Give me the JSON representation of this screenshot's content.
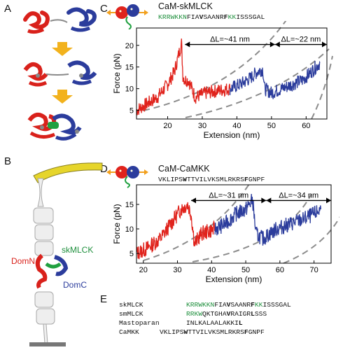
{
  "panels": {
    "A": {
      "label": "A"
    },
    "B": {
      "label": "B",
      "annotations": {
        "domn": "DomN",
        "skmlck": "skMLCK",
        "domc": "DomC"
      }
    },
    "C": {
      "label": "C",
      "title": "CaM-skMLCK",
      "sequence": [
        {
          "t": "KRRWKKN",
          "c": "g"
        },
        {
          "t": "FIA",
          "c": "n"
        },
        {
          "t": "V",
          "c": "b"
        },
        {
          "t": "SAANR",
          "c": "n"
        },
        {
          "t": "F",
          "c": "b"
        },
        {
          "t": "KK",
          "c": "g"
        },
        {
          "t": "ISSSGAL",
          "c": "n"
        }
      ],
      "arrow1": "ΔL=~41 nm",
      "arrow2": "ΔL=~22 nm"
    },
    "D": {
      "label": "D",
      "title": "CaM-CaMKK",
      "sequence": [
        {
          "t": "VKLIPS",
          "c": "n"
        },
        {
          "t": "W",
          "c": "b"
        },
        {
          "t": "TTVILVKSMLRKRS",
          "c": "n"
        },
        {
          "t": "F",
          "c": "b"
        },
        {
          "t": "GNPF",
          "c": "n"
        }
      ],
      "arrow1": "ΔL=~31 nm",
      "arrow2": "ΔL=~34 nm"
    },
    "E": {
      "label": "E",
      "rows": [
        {
          "name": "skMLCK",
          "segments": [
            {
              "t": "KRRWKKN",
              "c": "g"
            },
            {
              "t": "FIA",
              "c": "n"
            },
            {
              "t": "V",
              "c": "b"
            },
            {
              "t": "SAANR",
              "c": "n"
            },
            {
              "t": "F",
              "c": "b"
            },
            {
              "t": "KK",
              "c": "g"
            },
            {
              "t": "ISSSGAL",
              "c": "n"
            }
          ]
        },
        {
          "name": "smMLCK",
          "segments": [
            {
              "t": "RRKW",
              "c": "g"
            },
            {
              "t": "QKTGHA",
              "c": "n"
            },
            {
              "t": "V",
              "c": "b"
            },
            {
              "t": "RAIGR",
              "c": "n"
            },
            {
              "t": "L",
              "c": "b"
            },
            {
              "t": "SSS",
              "c": "n"
            }
          ]
        },
        {
          "name": "Mastoparan",
          "segments": [
            {
              "t": "INLKALAALAKKI",
              "c": "n"
            },
            {
              "t": "L",
              "c": "b"
            }
          ]
        },
        {
          "name": "CaMKK",
          "segments": [
            {
              "t": "VKLIPS",
              "c": "n"
            },
            {
              "t": "W",
              "c": "b"
            },
            {
              "t": "TTVILVKSMLRKRS",
              "c": "n"
            },
            {
              "t": "F",
              "c": "b"
            },
            {
              "t": "GNPF",
              "c": "n"
            }
          ]
        }
      ]
    }
  },
  "chart_data": [
    {
      "type": "line",
      "panel": "C",
      "title": "CaM-skMLCK",
      "xlabel": "Extension (nm)",
      "ylabel": "Force (pN)",
      "xlim": [
        11,
        66
      ],
      "ylim": [
        3,
        24
      ],
      "xticks": [
        20,
        30,
        40,
        50,
        60
      ],
      "yticks": [
        5,
        10,
        15,
        20
      ],
      "series": [
        {
          "color": "#e0231c",
          "points": [
            [
              11,
              5
            ],
            [
              14,
              6.5
            ],
            [
              17,
              8
            ],
            [
              20,
              11
            ],
            [
              22,
              14
            ],
            [
              24,
              20.5
            ],
            [
              24.4,
              13
            ],
            [
              25,
              12
            ],
            [
              26,
              12
            ],
            [
              28,
              8
            ],
            [
              31,
              9
            ],
            [
              34,
              9.5
            ],
            [
              38,
              10
            ]
          ]
        },
        {
          "color": "#2b3c9c",
          "points": [
            [
              38,
              10
            ],
            [
              41,
              11
            ],
            [
              44,
              12.5
            ],
            [
              46,
              14
            ],
            [
              47.5,
              14.5
            ],
            [
              48,
              10
            ],
            [
              50,
              9
            ],
            [
              53,
              10
            ],
            [
              56,
              11
            ],
            [
              59,
              12
            ],
            [
              61,
              13.5
            ],
            [
              64,
              16
            ]
          ]
        }
      ],
      "annotations": [
        "ΔL=~41 nm",
        "ΔL=~22 nm"
      ]
    },
    {
      "type": "line",
      "panel": "D",
      "title": "CaM-CaMKK",
      "xlabel": "Extension (nm)",
      "ylabel": "Force (pN)",
      "xlim": [
        18,
        75
      ],
      "ylim": [
        3,
        19
      ],
      "xticks": [
        20,
        30,
        40,
        50,
        60,
        70
      ],
      "yticks": [
        5,
        10,
        15
      ],
      "series": [
        {
          "color": "#e0231c",
          "points": [
            [
              18,
              5
            ],
            [
              21,
              6
            ],
            [
              25,
              8
            ],
            [
              28,
              11
            ],
            [
              31,
              14
            ],
            [
              33,
              15
            ],
            [
              34,
              13
            ],
            [
              35,
              7
            ],
            [
              37,
              9
            ],
            [
              41,
              10
            ]
          ]
        },
        {
          "color": "#2b3c9c",
          "points": [
            [
              41,
              10
            ],
            [
              44,
              11
            ],
            [
              47,
              13
            ],
            [
              50,
              14
            ],
            [
              52,
              16
            ],
            [
              53,
              9
            ],
            [
              55,
              8
            ],
            [
              59,
              10
            ],
            [
              63,
              11
            ],
            [
              67,
              12
            ],
            [
              70,
              13
            ],
            [
              72,
              14
            ]
          ]
        }
      ],
      "annotations": [
        "ΔL=~31 nm",
        "ΔL=~34 nm"
      ]
    }
  ]
}
